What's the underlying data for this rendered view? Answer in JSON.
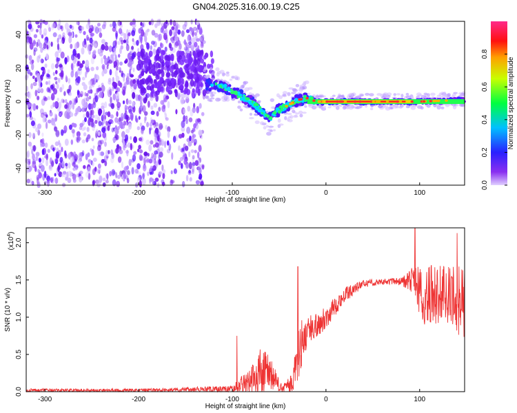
{
  "title": "GN04.2025.316.00.19.C25",
  "chart_data": [
    {
      "type": "heatmap",
      "xlabel": "Height of straight line (km)",
      "ylabel": "Frequency (Hz)",
      "xlim": [
        -320,
        148
      ],
      "ylim": [
        -50,
        48
      ],
      "xticks": [
        -300,
        -200,
        -100,
        0,
        100
      ],
      "yticks": [
        -40,
        -20,
        0,
        20,
        40
      ],
      "colorbar": {
        "label": "Normalized spectral amplitude",
        "range": [
          0.0,
          1.0
        ],
        "ticks": [
          0.0,
          0.2,
          0.4,
          0.6,
          0.8
        ],
        "colormap": "rainbow (purple-blue-cyan-green-yellow-red-magenta)"
      },
      "ridge": {
        "x": [
          -125,
          -110,
          -100,
          -90,
          -80,
          -70,
          -60,
          -50,
          -40,
          -30,
          -20,
          -10,
          0,
          50,
          100,
          148
        ],
        "y": [
          10,
          9,
          6,
          3,
          0,
          -5,
          -10,
          -5,
          -2,
          1,
          2,
          0,
          0,
          0,
          0,
          1
        ]
      },
      "colors": {
        "low": "#dcc8ff",
        "mid": "#7a20f0",
        "high": "#ff2020"
      }
    },
    {
      "type": "line",
      "xlabel": "Height of straight line (km)",
      "ylabel": "SNR (10 * v/v)",
      "yscale_label": "(x10",
      "yscale_exp": "4",
      "xlim": [
        -320,
        148
      ],
      "ylim": [
        0,
        2.2
      ],
      "xticks": [
        -300,
        -200,
        -100,
        0,
        100
      ],
      "yticks": [
        "0.0",
        "0.5",
        "1.0",
        "1.5",
        "2.0"
      ],
      "series": [
        {
          "color": "#ee3333",
          "envelope": {
            "x": [
              -320,
              -200,
              -150,
              -120,
              -100,
              -80,
              -70,
              -60,
              -50,
              -45,
              -35,
              -30,
              -25,
              -20,
              0,
              20,
              40,
              60,
              80,
              95,
              100,
              120,
              148
            ],
            "base": [
              0.02,
              0.02,
              0.03,
              0.03,
              0.03,
              0.15,
              0.25,
              0.25,
              0.08,
              0.05,
              0.1,
              0.5,
              0.7,
              0.8,
              1.0,
              1.3,
              1.45,
              1.48,
              1.48,
              1.5,
              1.3,
              1.3,
              1.2
            ],
            "spread": [
              0.02,
              0.02,
              0.03,
              0.04,
              0.05,
              0.2,
              0.35,
              0.25,
              0.08,
              0.05,
              0.2,
              0.4,
              0.3,
              0.2,
              0.15,
              0.1,
              0.05,
              0.04,
              0.05,
              0.2,
              0.4,
              0.4,
              0.5
            ]
          },
          "peaks": [
            {
              "x": -30,
              "y": 1.68
            },
            {
              "x": -95,
              "y": 0.75
            },
            {
              "x": 95,
              "y": 2.2
            },
            {
              "x": 140,
              "y": 2.13
            }
          ]
        }
      ]
    }
  ]
}
